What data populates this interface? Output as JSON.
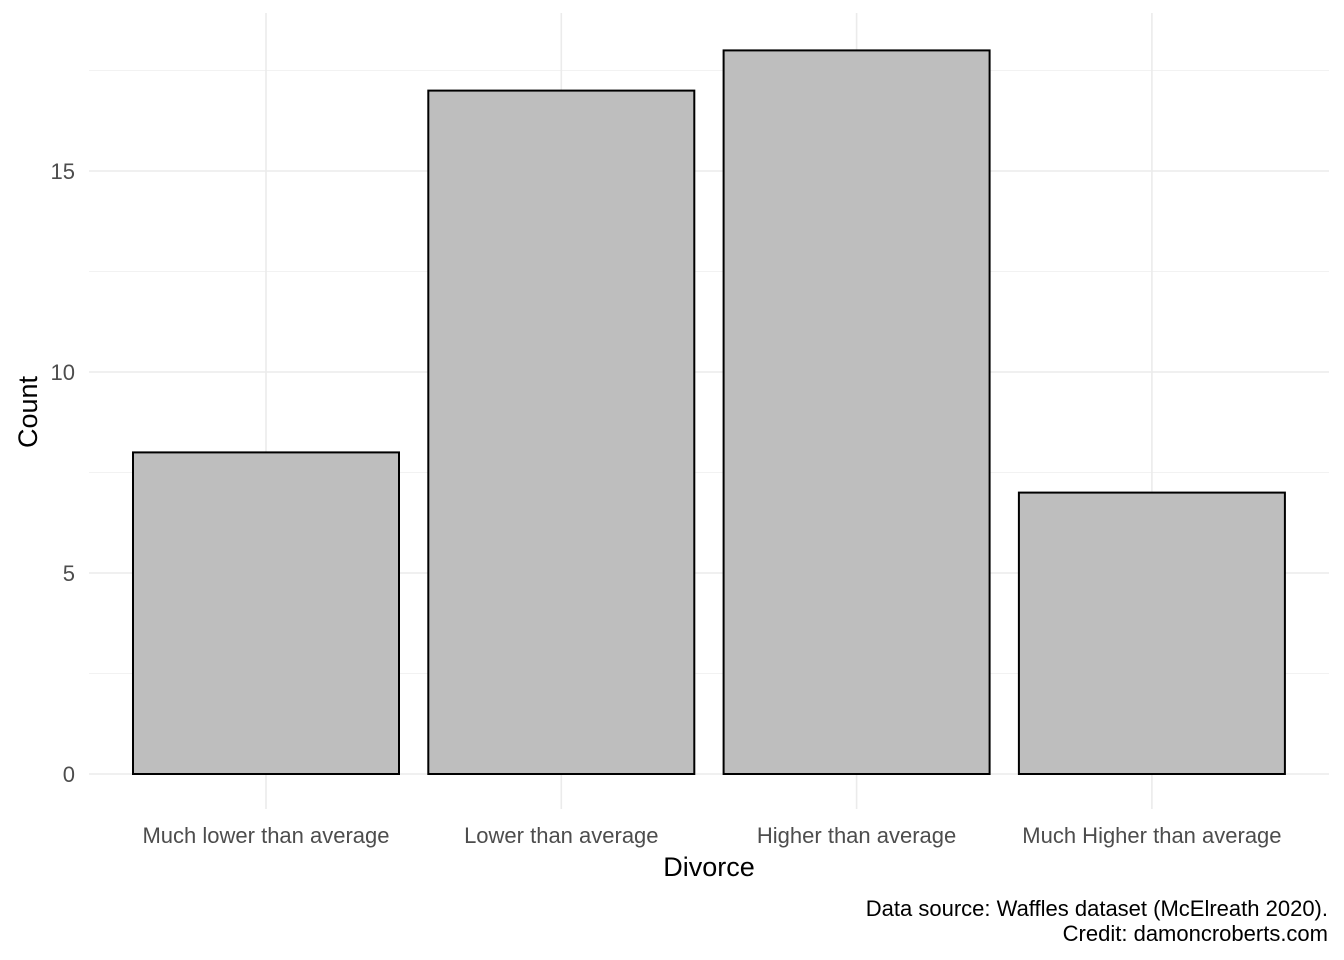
{
  "chart_data": {
    "type": "bar",
    "categories": [
      "Much lower than average",
      "Lower than average",
      "Higher than average",
      "Much Higher than average"
    ],
    "values": [
      8,
      17,
      18,
      7
    ],
    "title": "",
    "xlabel": "Divorce",
    "ylabel": "Count",
    "ylim": [
      0,
      18.9
    ],
    "yticks": [
      0,
      5,
      10,
      15
    ],
    "grid": true,
    "bar_fill": "#bebebe",
    "bar_stroke": "#000000",
    "caption": [
      "Data source: Waffles dataset (McElreath 2020).",
      "Credit: damoncroberts.com"
    ]
  }
}
